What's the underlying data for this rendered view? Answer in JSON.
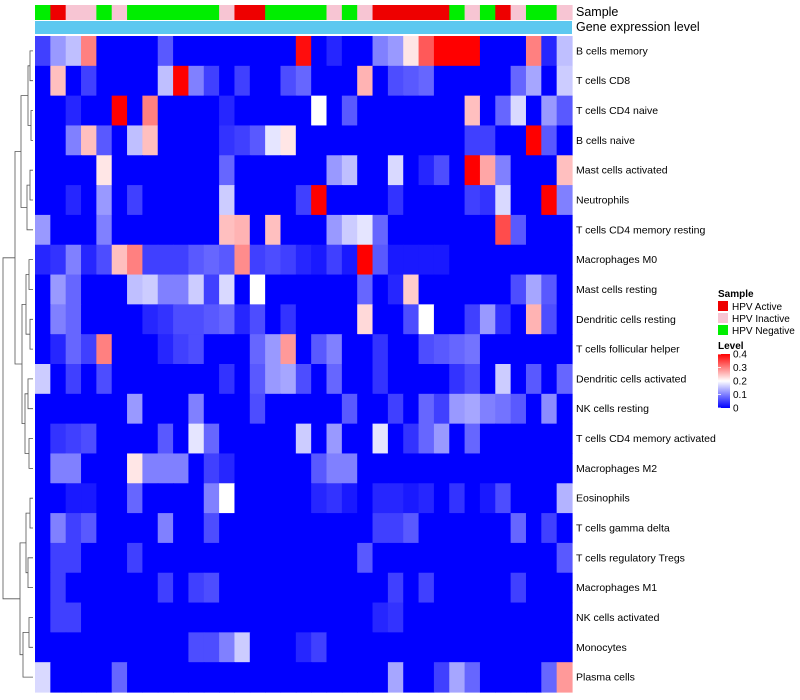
{
  "chart_data": {
    "type": "heatmap",
    "title": "",
    "annotations": {
      "sample_label": "Sample",
      "gene_label": "Gene expression level",
      "gene_color": "#5dc8f0",
      "sample_categories": [
        "HPV Active",
        "HPV Inactive",
        "HPV Negative"
      ],
      "sample_colors": [
        "#ee0000",
        "#f7c5d3",
        "#00ee00"
      ],
      "samples": [
        2,
        0,
        1,
        1,
        2,
        1,
        2,
        2,
        2,
        2,
        2,
        2,
        1,
        0,
        0,
        2,
        2,
        2,
        2,
        1,
        2,
        1,
        0,
        0,
        0,
        0,
        0,
        2,
        1,
        2,
        0,
        1,
        2,
        2,
        1
      ]
    },
    "legend": {
      "sample_title": "Sample",
      "level_title": "Level",
      "level_ticks": [
        "0",
        "0.1",
        "0.2",
        "0.3",
        "0.4"
      ],
      "level_tick_values": [
        0,
        0.1,
        0.2,
        0.3,
        0.4
      ],
      "level_range": [
        0,
        0.4
      ],
      "color_low": "#0000ff",
      "color_mid": "#ffffff",
      "color_high": "#ff0000"
    },
    "rows": [
      "B cells memory",
      "T cells CD8",
      "T cells CD4 naive",
      "B cells naive",
      "Mast cells activated",
      "Neutrophils",
      "T cells CD4 memory resting",
      "Macrophages M0",
      "Mast cells resting",
      "Dendritic cells resting",
      "T cells follicular helper",
      "Dendritic cells activated",
      "NK cells resting",
      "T cells CD4 memory activated",
      "Macrophages M2",
      "Eosinophils",
      "T cells gamma delta",
      "T cells regulatory  Tregs",
      "Macrophages M1",
      "NK cells activated",
      "Monocytes",
      "Plasma cells"
    ],
    "values": [
      [
        0.05,
        0.12,
        0.15,
        0.3,
        0.0,
        0.0,
        0.0,
        0.0,
        0.07,
        0.0,
        0.0,
        0.0,
        0.0,
        0.0,
        0.0,
        0.0,
        0.0,
        0.39,
        0.0,
        0.03,
        0.0,
        0.0,
        0.1,
        0.12,
        0.22,
        0.33,
        0.4,
        0.4,
        0.4,
        0.0,
        0.0,
        0.0,
        0.3,
        0.03,
        0.15
      ],
      [
        0.0,
        0.25,
        0.0,
        0.05,
        0.0,
        0.0,
        0.0,
        0.0,
        0.15,
        0.4,
        0.1,
        0.05,
        0.0,
        0.05,
        0.0,
        0.0,
        0.06,
        0.08,
        0.0,
        0.0,
        0.0,
        0.26,
        0.0,
        0.06,
        0.07,
        0.08,
        0.0,
        0.0,
        0.0,
        0.0,
        0.0,
        0.08,
        0.13,
        0.0,
        0.16
      ],
      [
        0.0,
        0.0,
        0.03,
        0.0,
        0.0,
        0.4,
        0.0,
        0.3,
        0.0,
        0.0,
        0.0,
        0.0,
        0.03,
        0.0,
        0.0,
        0.0,
        0.0,
        0.0,
        0.2,
        0.0,
        0.07,
        0.0,
        0.0,
        0.0,
        0.0,
        0.0,
        0.0,
        0.0,
        0.25,
        0.0,
        0.08,
        0.17,
        0.0,
        0.12,
        0.07
      ],
      [
        0.0,
        0.0,
        0.1,
        0.25,
        0.07,
        0.0,
        0.15,
        0.25,
        0.0,
        0.0,
        0.0,
        0.0,
        0.04,
        0.05,
        0.07,
        0.18,
        0.22,
        0.0,
        0.0,
        0.0,
        0.0,
        0.0,
        0.0,
        0.0,
        0.0,
        0.0,
        0.0,
        0.0,
        0.05,
        0.05,
        0.0,
        0.0,
        0.4,
        0.07,
        0.0
      ],
      [
        0.0,
        0.0,
        0.0,
        0.0,
        0.22,
        0.0,
        0.0,
        0.0,
        0.0,
        0.0,
        0.0,
        0.0,
        0.08,
        0.0,
        0.0,
        0.0,
        0.0,
        0.0,
        0.0,
        0.12,
        0.15,
        0.0,
        0.0,
        0.17,
        0.0,
        0.03,
        0.06,
        0.0,
        0.4,
        0.27,
        0.1,
        0.0,
        0.0,
        0.0,
        0.25
      ],
      [
        0.0,
        0.0,
        0.03,
        0.0,
        0.12,
        0.0,
        0.05,
        0.0,
        0.0,
        0.0,
        0.0,
        0.0,
        0.16,
        0.0,
        0.0,
        0.0,
        0.0,
        0.05,
        0.4,
        0.0,
        0.0,
        0.0,
        0.0,
        0.04,
        0.0,
        0.0,
        0.0,
        0.0,
        0.05,
        0.04,
        0.17,
        0.0,
        0.0,
        0.4,
        0.1
      ],
      [
        0.12,
        0.0,
        0.0,
        0.0,
        0.1,
        0.0,
        0.0,
        0.0,
        0.0,
        0.0,
        0.0,
        0.0,
        0.25,
        0.26,
        0.0,
        0.25,
        0.0,
        0.0,
        0.0,
        0.12,
        0.16,
        0.18,
        0.08,
        0.0,
        0.0,
        0.0,
        0.0,
        0.0,
        0.0,
        0.0,
        0.34,
        0.07,
        0.0,
        0.0,
        0.0
      ],
      [
        0.03,
        0.04,
        0.1,
        0.03,
        0.06,
        0.25,
        0.3,
        0.05,
        0.05,
        0.05,
        0.07,
        0.08,
        0.07,
        0.29,
        0.05,
        0.06,
        0.05,
        0.03,
        0.02,
        0.05,
        0.02,
        0.4,
        0.07,
        0.02,
        0.02,
        0.02,
        0.02,
        0.0,
        0.0,
        0.0,
        0.0,
        0.0,
        0.0,
        0.0,
        0.0
      ],
      [
        0.0,
        0.12,
        0.08,
        0.0,
        0.0,
        0.0,
        0.15,
        0.16,
        0.1,
        0.1,
        0.16,
        0.05,
        0.17,
        0.0,
        0.2,
        0.0,
        0.0,
        0.0,
        0.0,
        0.0,
        0.0,
        0.08,
        0.0,
        0.03,
        0.24,
        0.0,
        0.0,
        0.0,
        0.0,
        0.0,
        0.0,
        0.06,
        0.13,
        0.07,
        0.0
      ],
      [
        0.0,
        0.1,
        0.08,
        0.0,
        0.0,
        0.0,
        0.0,
        0.03,
        0.04,
        0.06,
        0.06,
        0.07,
        0.08,
        0.03,
        0.06,
        0.0,
        0.04,
        0.0,
        0.0,
        0.0,
        0.0,
        0.23,
        0.0,
        0.0,
        0.06,
        0.2,
        0.0,
        0.0,
        0.05,
        0.12,
        0.04,
        0.0,
        0.26,
        0.06,
        0.0
      ],
      [
        0.0,
        0.03,
        0.08,
        0.05,
        0.3,
        0.0,
        0.0,
        0.0,
        0.03,
        0.05,
        0.06,
        0.0,
        0.0,
        0.0,
        0.08,
        0.12,
        0.28,
        0.0,
        0.07,
        0.1,
        0.0,
        0.0,
        0.04,
        0.0,
        0.0,
        0.06,
        0.07,
        0.08,
        0.09,
        0.0,
        0.0,
        0.0,
        0.0,
        0.0,
        0.0
      ],
      [
        0.16,
        0.0,
        0.05,
        0.0,
        0.06,
        0.0,
        0.0,
        0.0,
        0.0,
        0.0,
        0.0,
        0.0,
        0.04,
        0.0,
        0.07,
        0.12,
        0.13,
        0.06,
        0.0,
        0.08,
        0.0,
        0.0,
        0.04,
        0.0,
        0.0,
        0.0,
        0.0,
        0.04,
        0.06,
        0.0,
        0.16,
        0.0,
        0.07,
        0.0,
        0.08
      ],
      [
        0.0,
        0.0,
        0.0,
        0.0,
        0.0,
        0.0,
        0.12,
        0.0,
        0.0,
        0.0,
        0.1,
        0.0,
        0.0,
        0.0,
        0.06,
        0.0,
        0.0,
        0.0,
        0.0,
        0.0,
        0.07,
        0.0,
        0.0,
        0.05,
        0.0,
        0.08,
        0.05,
        0.12,
        0.13,
        0.1,
        0.09,
        0.07,
        0.0,
        0.11,
        0.0
      ],
      [
        0.0,
        0.04,
        0.05,
        0.06,
        0.0,
        0.0,
        0.0,
        0.0,
        0.07,
        0.0,
        0.18,
        0.08,
        0.0,
        0.0,
        0.0,
        0.0,
        0.0,
        0.16,
        0.0,
        0.12,
        0.0,
        0.0,
        0.18,
        0.0,
        0.04,
        0.08,
        0.12,
        0.0,
        0.08,
        0.0,
        0.0,
        0.0,
        0.0,
        0.0,
        0.0
      ],
      [
        0.0,
        0.1,
        0.1,
        0.0,
        0.0,
        0.0,
        0.22,
        0.1,
        0.1,
        0.1,
        0.0,
        0.05,
        0.03,
        0.0,
        0.0,
        0.0,
        0.0,
        0.0,
        0.07,
        0.1,
        0.1,
        0.0,
        0.0,
        0.0,
        0.0,
        0.0,
        0.0,
        0.0,
        0.0,
        0.0,
        0.0,
        0.0,
        0.0,
        0.0,
        0.0
      ],
      [
        0.0,
        0.0,
        0.02,
        0.02,
        0.0,
        0.0,
        0.08,
        0.0,
        0.0,
        0.0,
        0.0,
        0.1,
        0.2,
        0.0,
        0.0,
        0.0,
        0.0,
        0.0,
        0.03,
        0.04,
        0.02,
        0.0,
        0.03,
        0.03,
        0.02,
        0.03,
        0.0,
        0.04,
        0.0,
        0.02,
        0.06,
        0.0,
        0.0,
        0.0,
        0.14
      ],
      [
        0.0,
        0.1,
        0.05,
        0.07,
        0.0,
        0.0,
        0.0,
        0.0,
        0.1,
        0.0,
        0.0,
        0.06,
        0.0,
        0.0,
        0.0,
        0.0,
        0.0,
        0.0,
        0.0,
        0.0,
        0.0,
        0.0,
        0.05,
        0.05,
        0.07,
        0.0,
        0.0,
        0.0,
        0.0,
        0.0,
        0.0,
        0.08,
        0.0,
        0.05,
        0.0
      ],
      [
        0.0,
        0.05,
        0.05,
        0.0,
        0.0,
        0.0,
        0.05,
        0.0,
        0.0,
        0.0,
        0.0,
        0.0,
        0.0,
        0.0,
        0.0,
        0.0,
        0.0,
        0.0,
        0.0,
        0.0,
        0.0,
        0.07,
        0.0,
        0.0,
        0.0,
        0.0,
        0.0,
        0.0,
        0.0,
        0.0,
        0.0,
        0.0,
        0.0,
        0.0,
        0.07
      ],
      [
        0.0,
        0.05,
        0.0,
        0.0,
        0.0,
        0.0,
        0.0,
        0.0,
        0.05,
        0.0,
        0.05,
        0.06,
        0.0,
        0.0,
        0.0,
        0.0,
        0.0,
        0.0,
        0.0,
        0.0,
        0.0,
        0.0,
        0.0,
        0.05,
        0.0,
        0.05,
        0.0,
        0.0,
        0.0,
        0.0,
        0.0,
        0.05,
        0.0,
        0.0,
        0.0
      ],
      [
        0.0,
        0.05,
        0.05,
        0.0,
        0.0,
        0.0,
        0.0,
        0.0,
        0.0,
        0.0,
        0.0,
        0.0,
        0.0,
        0.0,
        0.0,
        0.0,
        0.0,
        0.0,
        0.0,
        0.0,
        0.0,
        0.0,
        0.03,
        0.04,
        0.0,
        0.0,
        0.0,
        0.0,
        0.0,
        0.0,
        0.0,
        0.0,
        0.0,
        0.0,
        0.0
      ],
      [
        0.0,
        0.0,
        0.0,
        0.0,
        0.0,
        0.0,
        0.0,
        0.0,
        0.0,
        0.0,
        0.06,
        0.06,
        0.1,
        0.16,
        0.0,
        0.0,
        0.0,
        0.03,
        0.05,
        0.0,
        0.0,
        0.0,
        0.0,
        0.0,
        0.0,
        0.0,
        0.0,
        0.0,
        0.0,
        0.0,
        0.0,
        0.0,
        0.0,
        0.0,
        0.0
      ],
      [
        0.17,
        0.0,
        0.0,
        0.0,
        0.0,
        0.08,
        0.0,
        0.0,
        0.0,
        0.0,
        0.0,
        0.0,
        0.0,
        0.0,
        0.0,
        0.0,
        0.0,
        0.0,
        0.0,
        0.0,
        0.0,
        0.0,
        0.0,
        0.13,
        0.0,
        0.0,
        0.05,
        0.13,
        0.08,
        0.0,
        0.0,
        0.0,
        0.0,
        0.08,
        0.28
      ]
    ]
  }
}
